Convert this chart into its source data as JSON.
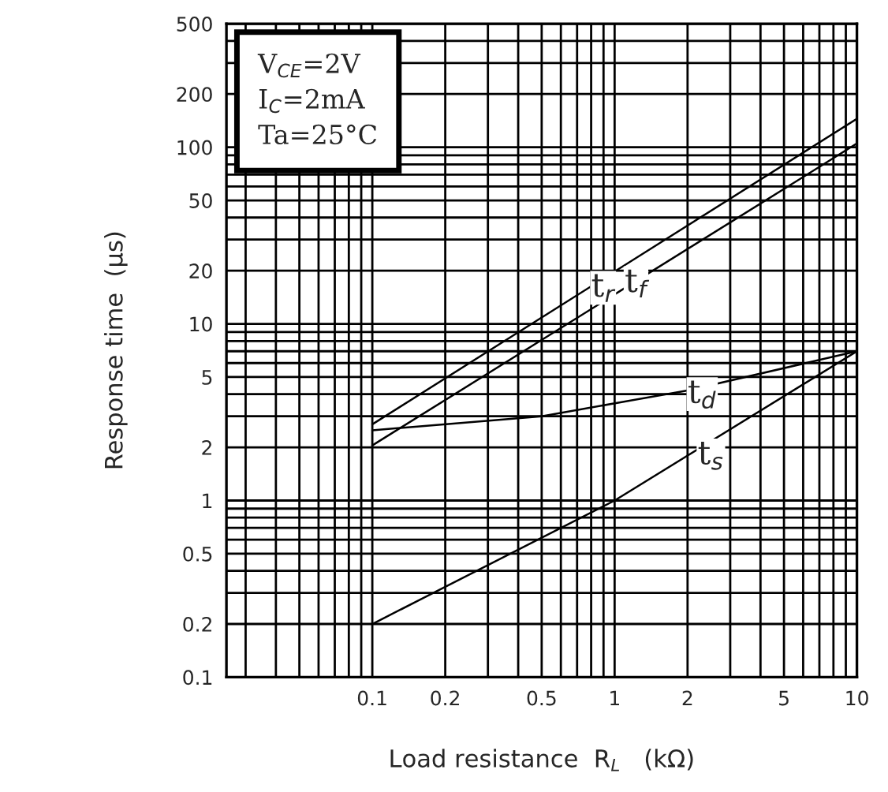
{
  "chart_data": {
    "type": "line",
    "xlabel": "Load resistance  R$_{L}$   (kΩ)",
    "ylabel": "Response time  (μs)",
    "log": "xy",
    "grid": true,
    "legend": false,
    "marker": "none",
    "line_style": "solid",
    "xlim": [
      0.025,
      10
    ],
    "ylim": [
      0.1,
      500
    ],
    "xticks": [
      {
        "value": 0.03,
        "label": null
      },
      {
        "value": 0.04,
        "label": null
      },
      {
        "value": 0.05,
        "label": null
      },
      {
        "value": 0.06,
        "label": null
      },
      {
        "value": 0.07,
        "label": null
      },
      {
        "value": 0.08,
        "label": null
      },
      {
        "value": 0.09,
        "label": null
      },
      0.1,
      0.2,
      {
        "value": 0.3,
        "label": null
      },
      {
        "value": 0.4,
        "label": null
      },
      0.5,
      {
        "value": 0.6,
        "label": null
      },
      {
        "value": 0.7,
        "label": null
      },
      {
        "value": 0.8,
        "label": null
      },
      {
        "value": 0.9,
        "label": null
      },
      1,
      2,
      {
        "value": 3,
        "label": null
      },
      {
        "value": 4,
        "label": null
      },
      5,
      {
        "value": 6,
        "label": null
      },
      {
        "value": 7,
        "label": null
      },
      {
        "value": 8,
        "label": null
      },
      {
        "value": 9,
        "label": null
      },
      10
    ],
    "yticks": [
      0.1,
      0.2,
      {
        "value": 0.3,
        "label": null
      },
      {
        "value": 0.4,
        "label": null
      },
      0.5,
      {
        "value": 0.6,
        "label": null
      },
      {
        "value": 0.7,
        "label": null
      },
      {
        "value": 0.8,
        "label": null
      },
      {
        "value": 0.9,
        "label": null
      },
      1,
      2,
      {
        "value": 3,
        "label": null
      },
      {
        "value": 4,
        "label": null
      },
      5,
      {
        "value": 6,
        "label": null
      },
      {
        "value": 7,
        "label": null
      },
      {
        "value": 8,
        "label": null
      },
      {
        "value": 9,
        "label": null
      },
      10,
      20,
      {
        "value": 30,
        "label": null
      },
      {
        "value": 40,
        "label": null
      },
      50,
      {
        "value": 60,
        "label": null
      },
      {
        "value": 70,
        "label": null
      },
      {
        "value": 80,
        "label": null
      },
      {
        "value": 90,
        "label": null
      },
      100,
      200,
      {
        "value": 300,
        "label": null
      },
      {
        "value": 400,
        "label": null
      },
      500
    ],
    "series": [
      {
        "color": "#000000",
        "x": [
          0.1,
          10
        ],
        "values": [
          2.7,
          145
        ]
      },
      {
        "color": "#000000",
        "x": [
          0.1,
          10
        ],
        "values": [
          2.05,
          105
        ]
      },
      {
        "color": "#000000",
        "x": [
          0.1,
          0.5,
          2,
          10
        ],
        "values": [
          2.5,
          3.0,
          4.2,
          7
        ]
      },
      {
        "color": "#000000",
        "x": [
          0.1,
          1,
          10
        ],
        "values": [
          0.2,
          1.0,
          7
        ]
      }
    ],
    "annotations": [
      {
        "text": "t$_{r}$",
        "x": 0.8,
        "y": 16
      },
      {
        "text": "t$_{f}$",
        "x": 1.1,
        "y": 17
      },
      {
        "text": "t$_{d}$",
        "x": 2,
        "y": 4
      },
      {
        "text": "t$_{s}$",
        "x": 2.2,
        "y": 1.8
      },
      "V$_{CE}$=2V",
      "I$_{C}$=2mA",
      "Ta=25°C"
    ]
  }
}
